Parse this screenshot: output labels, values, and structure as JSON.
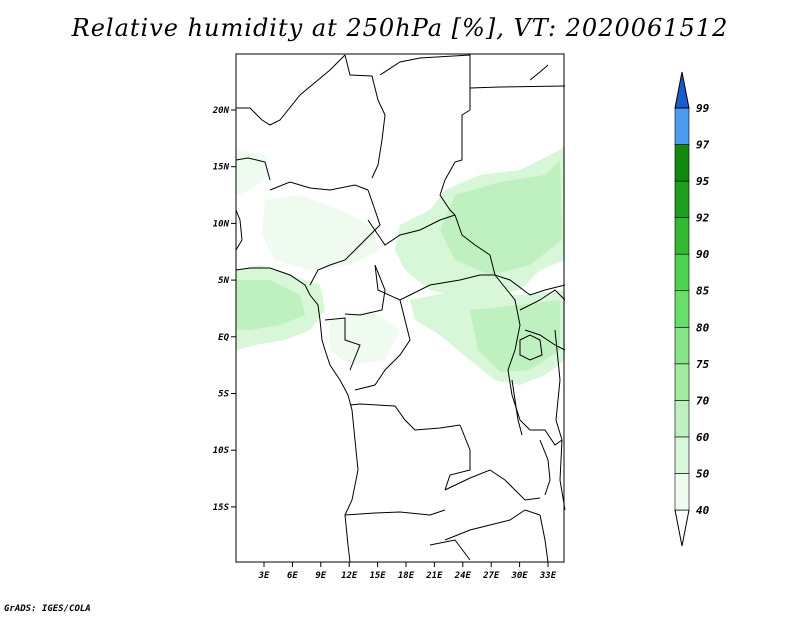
{
  "title": "Relative humidity at 250hPa [%], VT: 2020061512",
  "credit": "GrADS: IGES/COLA",
  "map": {
    "lon_range": [
      0,
      36
    ],
    "lat_range": [
      -20,
      24
    ],
    "lon_ticks": [
      "3E",
      "6E",
      "9E",
      "12E",
      "15E",
      "18E",
      "21E",
      "24E",
      "27E",
      "30E",
      "33E"
    ],
    "lat_ticks": [
      "20N",
      "15N",
      "10N",
      "5N",
      "EQ",
      "5S",
      "10S",
      "15S"
    ]
  },
  "colorbar": {
    "levels": [
      "40",
      "50",
      "60",
      "70",
      "75",
      "80",
      "85",
      "90",
      "92",
      "95",
      "97",
      "99"
    ],
    "colors": [
      "#eefbee",
      "#d8f6d8",
      "#bff0bf",
      "#a2eaa2",
      "#86e486",
      "#6ade6a",
      "#4fd24f",
      "#34b834",
      "#1e9e1e",
      "#0f8a0f",
      "#4a9cf0",
      "#2a7ae0",
      "#1a5ccc"
    ]
  }
}
